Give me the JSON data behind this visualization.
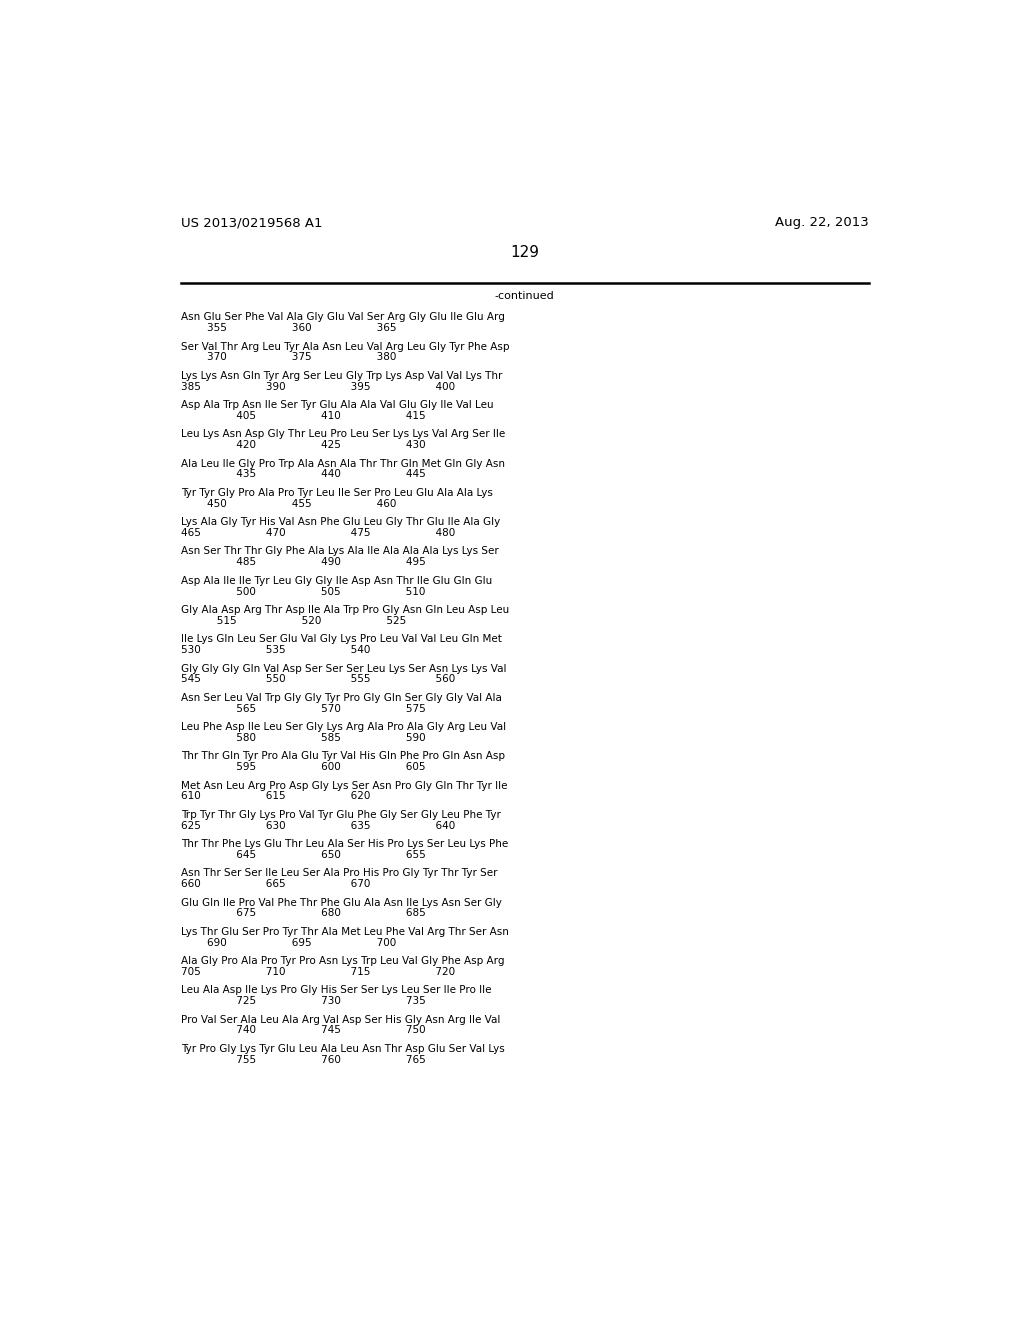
{
  "header_left": "US 2013/0219568 A1",
  "header_right": "Aug. 22, 2013",
  "page_number": "129",
  "continued_label": "-continued",
  "seq_lines": [
    [
      "Asn Glu Ser Phe Val Ala Gly Glu Val Ser Arg Gly Glu Ile Glu Arg",
      "        355                    360                    365"
    ],
    [
      "Ser Val Thr Arg Leu Tyr Ala Asn Leu Val Arg Leu Gly Tyr Phe Asp",
      "        370                    375                    380"
    ],
    [
      "Lys Lys Asn Gln Tyr Arg Ser Leu Gly Trp Lys Asp Val Val Lys Thr",
      "385                    390                    395                    400"
    ],
    [
      "Asp Ala Trp Asn Ile Ser Tyr Glu Ala Ala Val Glu Gly Ile Val Leu",
      "                 405                    410                    415"
    ],
    [
      "Leu Lys Asn Asp Gly Thr Leu Pro Leu Ser Lys Lys Val Arg Ser Ile",
      "                 420                    425                    430"
    ],
    [
      "Ala Leu Ile Gly Pro Trp Ala Asn Ala Thr Thr Gln Met Gln Gly Asn",
      "                 435                    440                    445"
    ],
    [
      "Tyr Tyr Gly Pro Ala Pro Tyr Leu Ile Ser Pro Leu Glu Ala Ala Lys",
      "        450                    455                    460"
    ],
    [
      "Lys Ala Gly Tyr His Val Asn Phe Glu Leu Gly Thr Glu Ile Ala Gly",
      "465                    470                    475                    480"
    ],
    [
      "Asn Ser Thr Thr Gly Phe Ala Lys Ala Ile Ala Ala Ala Lys Lys Ser",
      "                 485                    490                    495"
    ],
    [
      "Asp Ala Ile Ile Tyr Leu Gly Gly Ile Asp Asn Thr Ile Glu Gln Glu",
      "                 500                    505                    510"
    ],
    [
      "Gly Ala Asp Arg Thr Asp Ile Ala Trp Pro Gly Asn Gln Leu Asp Leu",
      "           515                    520                    525"
    ],
    [
      "Ile Lys Gln Leu Ser Glu Val Gly Lys Pro Leu Val Val Leu Gln Met",
      "530                    535                    540"
    ],
    [
      "Gly Gly Gly Gln Val Asp Ser Ser Ser Leu Lys Ser Asn Lys Lys Val",
      "545                    550                    555                    560"
    ],
    [
      "Asn Ser Leu Val Trp Gly Gly Tyr Pro Gly Gln Ser Gly Gly Val Ala",
      "                 565                    570                    575"
    ],
    [
      "Leu Phe Asp Ile Leu Ser Gly Lys Arg Ala Pro Ala Gly Arg Leu Val",
      "                 580                    585                    590"
    ],
    [
      "Thr Thr Gln Tyr Pro Ala Glu Tyr Val His Gln Phe Pro Gln Asn Asp",
      "                 595                    600                    605"
    ],
    [
      "Met Asn Leu Arg Pro Asp Gly Lys Ser Asn Pro Gly Gln Thr Tyr Ile",
      "610                    615                    620"
    ],
    [
      "Trp Tyr Thr Gly Lys Pro Val Tyr Glu Phe Gly Ser Gly Leu Phe Tyr",
      "625                    630                    635                    640"
    ],
    [
      "Thr Thr Phe Lys Glu Thr Leu Ala Ser His Pro Lys Ser Leu Lys Phe",
      "                 645                    650                    655"
    ],
    [
      "Asn Thr Ser Ser Ile Leu Ser Ala Pro His Pro Gly Tyr Thr Tyr Ser",
      "660                    665                    670"
    ],
    [
      "Glu Gln Ile Pro Val Phe Thr Phe Glu Ala Asn Ile Lys Asn Ser Gly",
      "                 675                    680                    685"
    ],
    [
      "Lys Thr Glu Ser Pro Tyr Thr Ala Met Leu Phe Val Arg Thr Ser Asn",
      "        690                    695                    700"
    ],
    [
      "Ala Gly Pro Ala Pro Tyr Pro Asn Lys Trp Leu Val Gly Phe Asp Arg",
      "705                    710                    715                    720"
    ],
    [
      "Leu Ala Asp Ile Lys Pro Gly His Ser Ser Lys Leu Ser Ile Pro Ile",
      "                 725                    730                    735"
    ],
    [
      "Pro Val Ser Ala Leu Ala Arg Val Asp Ser His Gly Asn Arg Ile Val",
      "                 740                    745                    750"
    ],
    [
      "Tyr Pro Gly Lys Tyr Glu Leu Ala Leu Asn Thr Asp Glu Ser Val Lys",
      "                 755                    760                    765"
    ]
  ]
}
